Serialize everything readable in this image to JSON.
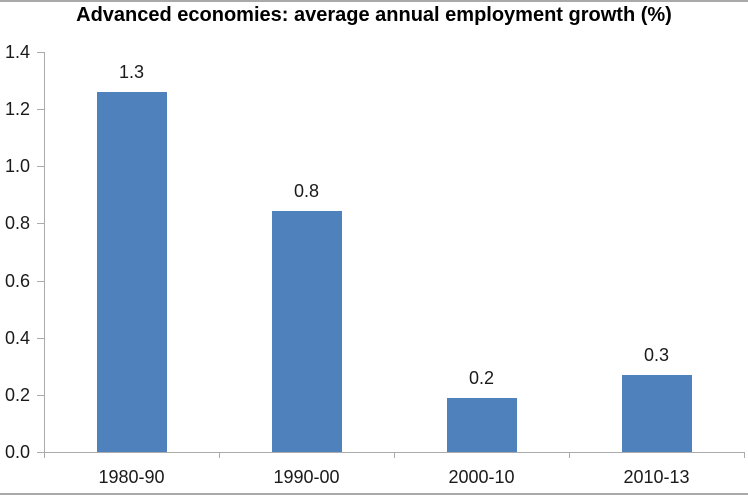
{
  "chart_data": {
    "type": "bar",
    "title": "Advanced economies: average annual employment growth (%)",
    "categories": [
      "1980-90",
      "1990-00",
      "2000-10",
      "2010-13"
    ],
    "values": [
      1.26,
      0.845,
      0.19,
      0.27
    ],
    "data_labels": [
      "1.3",
      "0.8",
      "0.2",
      "0.3"
    ],
    "ylim": [
      0,
      1.4
    ],
    "ytick_step": 0.2,
    "yticks": [
      "0.0",
      "0.2",
      "0.4",
      "0.6",
      "0.8",
      "1.0",
      "1.2",
      "1.4"
    ],
    "xlabel": "",
    "ylabel": "",
    "grid": false,
    "legend_position": "none",
    "colors": {
      "bar": "#4f81bd",
      "axis": "#ababab",
      "border": "#a9a9a9",
      "text": "#1a1a1a",
      "background": "#ffffff"
    }
  }
}
